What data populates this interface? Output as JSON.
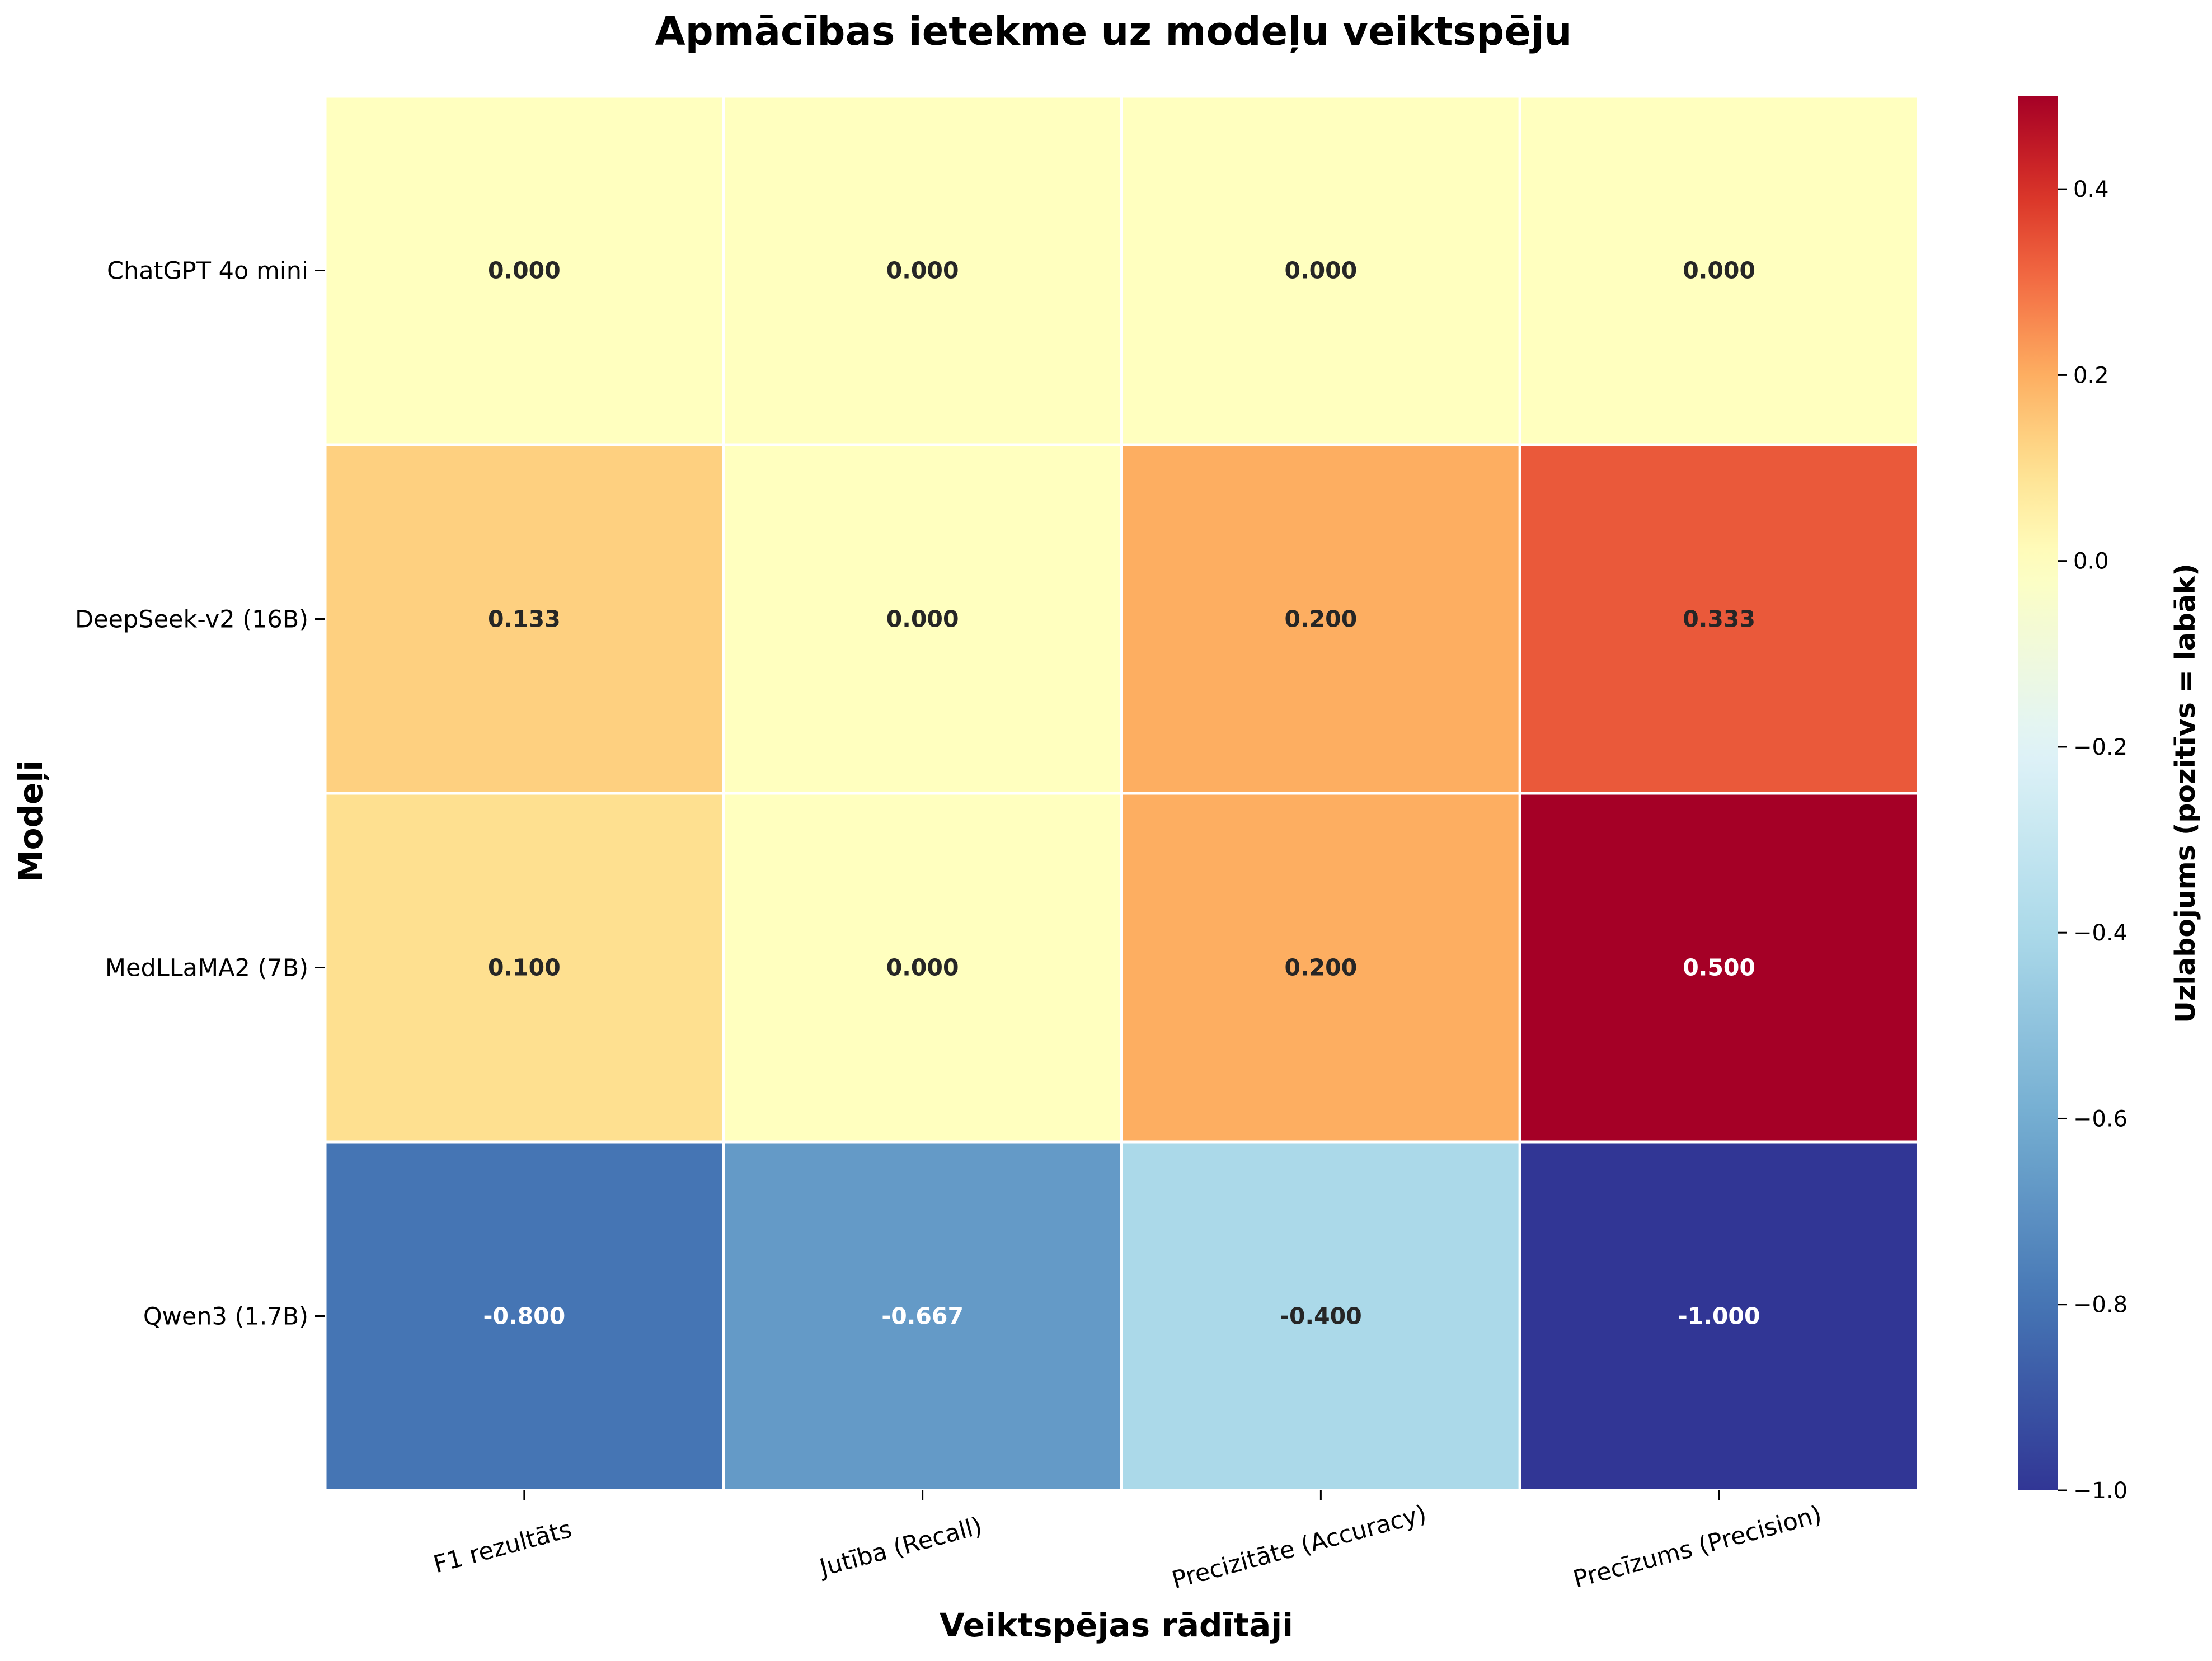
{
  "chart_data": {
    "type": "heatmap",
    "title": "Apmācības ietekme uz modeļu veiktspēju",
    "xlabel": "Veiktspējas rādītāji",
    "ylabel": "Modeļi",
    "x_categories": [
      "F1 rezultāts",
      "Jutība (Recall)",
      "Precizitāte (Accuracy)",
      "Precīzums (Precision)"
    ],
    "y_categories": [
      "ChatGPT 4o mini",
      "DeepSeek-v2 (16B)",
      "MedLLaMA2 (7B)",
      "Qwen3 (1.7B)"
    ],
    "values": [
      [
        0.0,
        0.0,
        0.0,
        0.0
      ],
      [
        0.133,
        0.0,
        0.2,
        0.333
      ],
      [
        0.1,
        0.0,
        0.2,
        0.5
      ],
      [
        -0.8,
        -0.667,
        -0.4,
        -1.0
      ]
    ],
    "cell_labels": [
      [
        "0.000",
        "0.000",
        "0.000",
        "0.000"
      ],
      [
        "0.133",
        "0.000",
        "0.200",
        "0.333"
      ],
      [
        "0.100",
        "0.000",
        "0.200",
        "0.500"
      ],
      [
        "-0.800",
        "-0.667",
        "-0.400",
        "-1.000"
      ]
    ],
    "colorbar": {
      "label": "Uzlabojums (pozitīvs = labāk)",
      "range": [
        -1.0,
        0.5
      ],
      "ticks": [
        0.4,
        0.2,
        0.0,
        -0.2,
        -0.4,
        -0.6,
        -0.8,
        -1.0
      ],
      "tick_labels": [
        "0.4",
        "0.2",
        "0.0",
        "−0.2",
        "−0.4",
        "−0.6",
        "−0.8",
        "−1.0"
      ],
      "colormap": "RdYlBu_r"
    },
    "colors": {
      "cell_border": "#ffffff",
      "text_dark": "#262626",
      "text_light": "#ffffff"
    },
    "grid": false
  }
}
